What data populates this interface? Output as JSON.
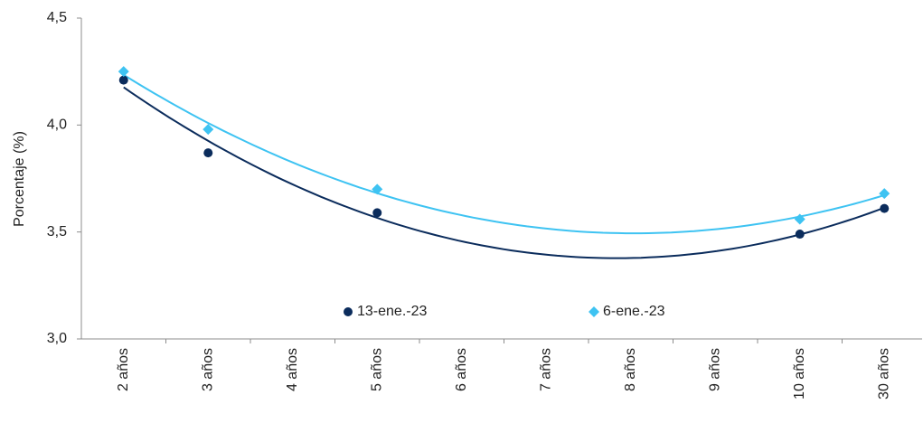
{
  "chart_data": {
    "type": "scatter",
    "y_label": "Porcentaje (%)",
    "categories": [
      "2 años",
      "3 años",
      "4 años",
      "5 años",
      "6 años",
      "7 años",
      "8 años",
      "9 años",
      "10 años",
      "30 años"
    ],
    "series": [
      {
        "name": "13-ene.-23",
        "color": "#0b2c5c",
        "marker": "circle",
        "values": [
          4.21,
          3.87,
          null,
          3.59,
          null,
          null,
          null,
          null,
          3.49,
          3.61
        ]
      },
      {
        "name": "6-ene.-23",
        "color": "#3ec3f2",
        "marker": "diamond",
        "values": [
          4.25,
          3.98,
          null,
          3.7,
          null,
          null,
          null,
          null,
          3.56,
          3.68
        ]
      }
    ],
    "trendline": "polynomial",
    "ylim": [
      3.0,
      4.5
    ],
    "yticks": [
      {
        "value": 3.0,
        "label": "3,0"
      },
      {
        "value": 3.5,
        "label": "3,5"
      },
      {
        "value": 4.0,
        "label": "4,0"
      },
      {
        "value": 4.5,
        "label": "4,5"
      }
    ],
    "grid": false
  }
}
